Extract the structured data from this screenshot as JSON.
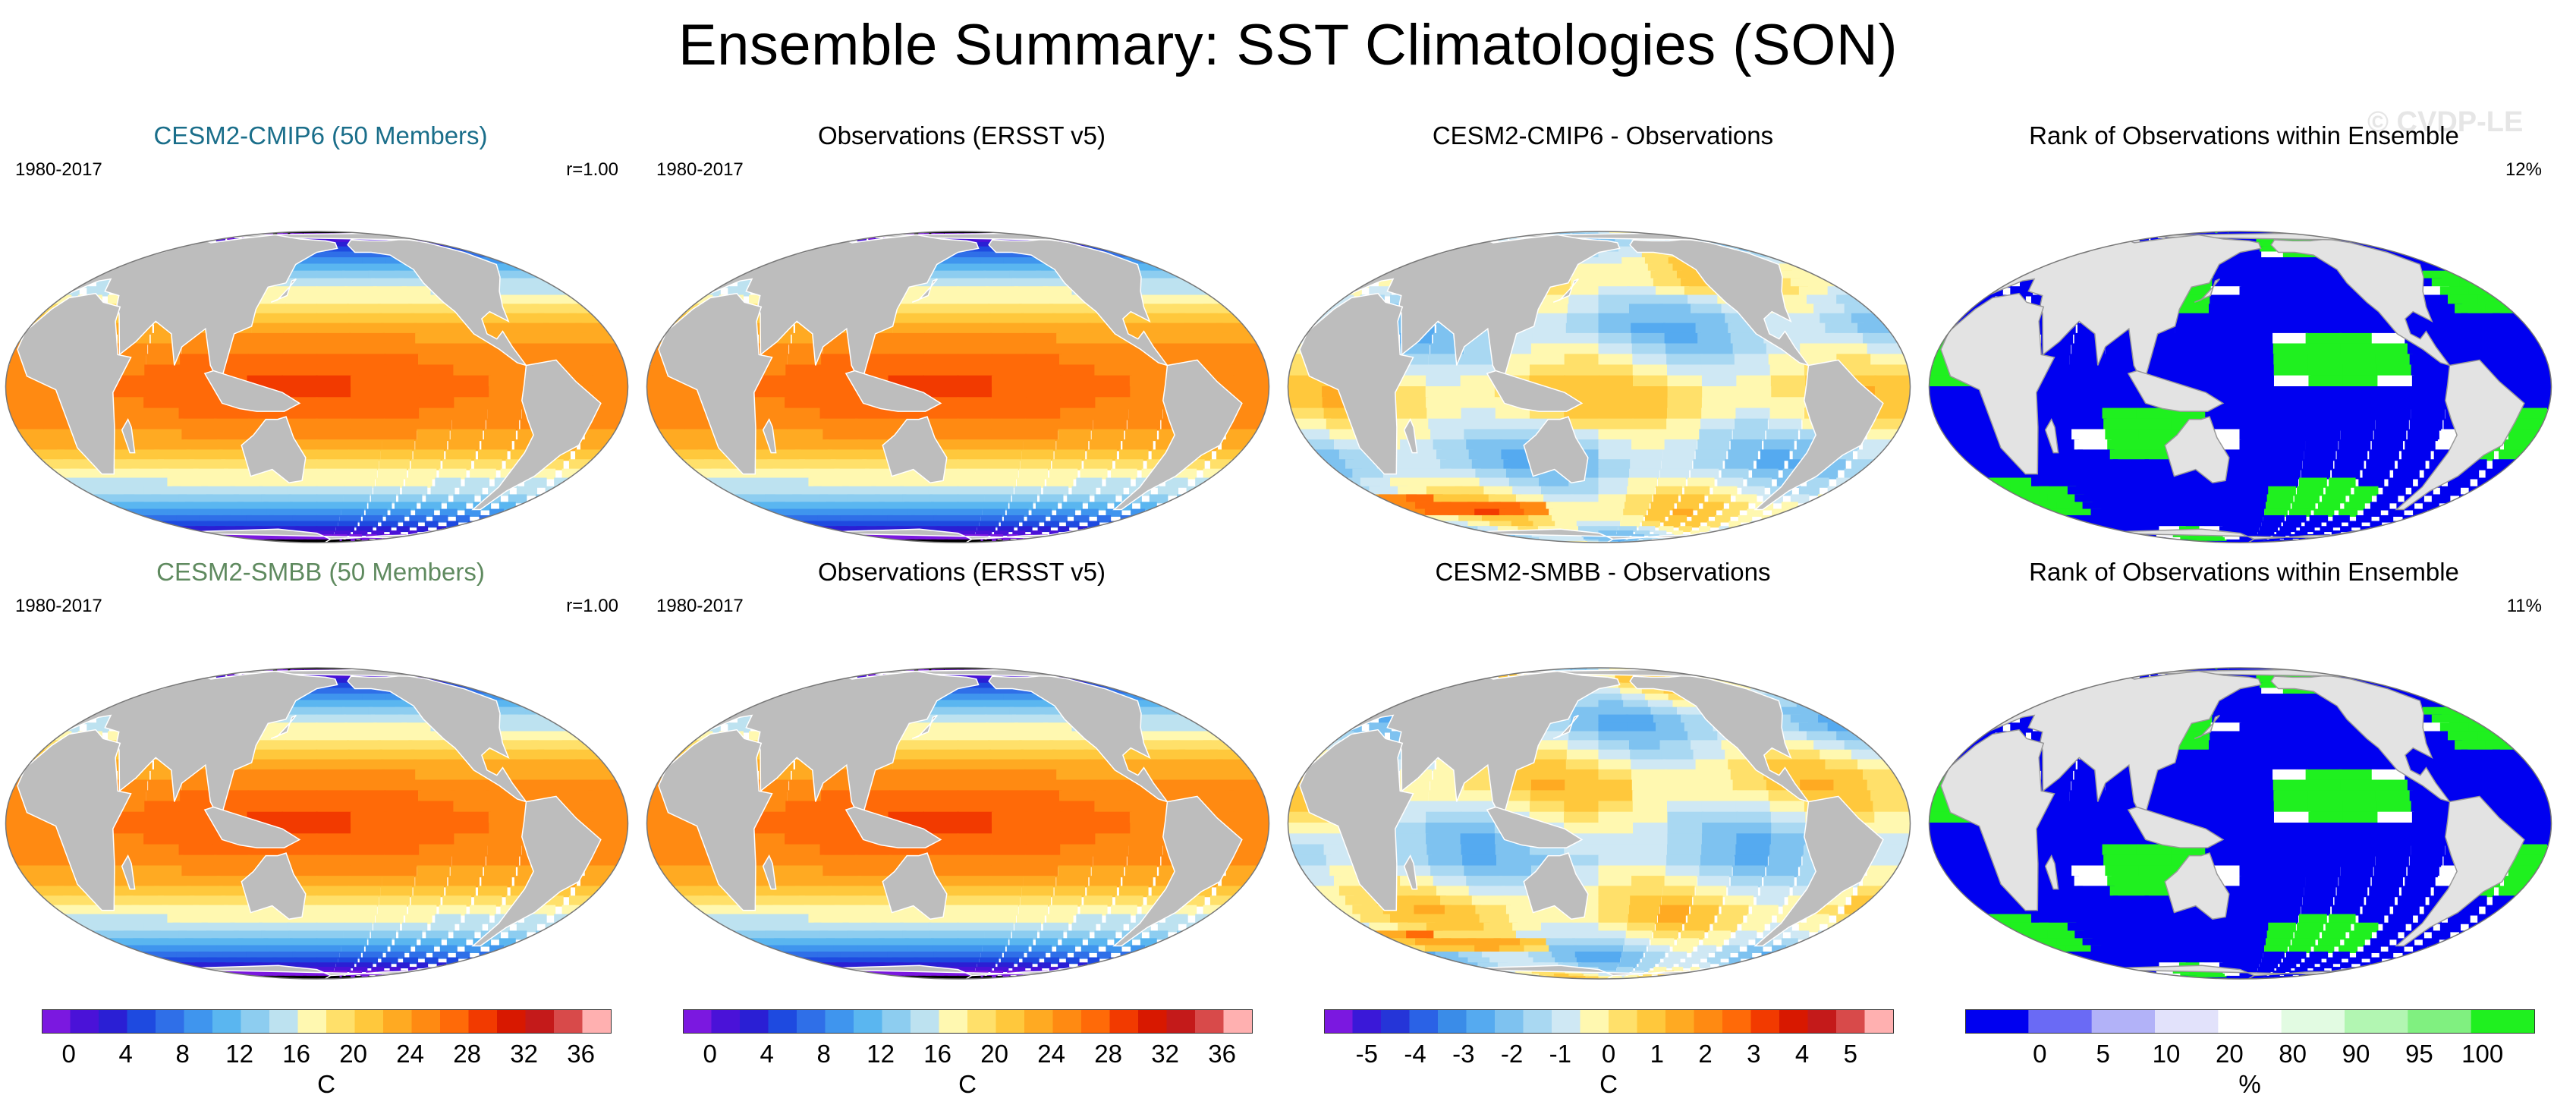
{
  "title": "Ensemble Summary: SST Climatologies (SON)",
  "watermark": "© CVDP-LE",
  "colors": {
    "model_cmip6_title": "#1a6e8a",
    "model_smbb_title": "#5f8a5f",
    "land": "#bdbdbd",
    "rank_land": "#e3e3e3"
  },
  "panels": [
    {
      "id": "cmip6-mean",
      "title": "CESM2-CMIP6 (50 Members)",
      "left": "1980-2017",
      "right": "r=1.00",
      "field": "sst",
      "title_color": "model_cmip6_title"
    },
    {
      "id": "obs-1",
      "title": "Observations (ERSST v5)",
      "left": "1980-2017",
      "right": "",
      "field": "sst"
    },
    {
      "id": "cmip6-diff",
      "title": "CESM2-CMIP6 - Observations",
      "left": "",
      "right": "",
      "field": "diff"
    },
    {
      "id": "cmip6-rank",
      "title": "Rank of Observations within Ensemble",
      "left": "",
      "right": "12%",
      "field": "rank"
    },
    {
      "id": "smbb-mean",
      "title": "CESM2-SMBB (50 Members)",
      "left": "1980-2017",
      "right": "r=1.00",
      "field": "sst",
      "title_color": "model_smbb_title"
    },
    {
      "id": "obs-2",
      "title": "Observations (ERSST v5)",
      "left": "1980-2017",
      "right": "",
      "field": "sst"
    },
    {
      "id": "smbb-diff",
      "title": "CESM2-SMBB - Observations",
      "left": "",
      "right": "",
      "field": "diff"
    },
    {
      "id": "smbb-rank",
      "title": "Rank of Observations within Ensemble",
      "left": "",
      "right": "11%",
      "field": "rank"
    }
  ],
  "colorbars": [
    {
      "id": "sst",
      "unit": "C",
      "ticks": [
        "0",
        "4",
        "8",
        "12",
        "16",
        "20",
        "24",
        "28",
        "32",
        "36"
      ],
      "colors": [
        "#7b18e0",
        "#4a12d8",
        "#2a1fd4",
        "#1e4ae0",
        "#2f6fe8",
        "#3f95ee",
        "#5ab6f0",
        "#8dcdf0",
        "#bde2f0",
        "#fff8b0",
        "#ffe06a",
        "#ffc83c",
        "#ffaa22",
        "#ff8a12",
        "#ff6a08",
        "#f23a00",
        "#d81800",
        "#c41a1a",
        "#d84a4a",
        "#ffb0b0"
      ]
    },
    {
      "id": "sst2",
      "unit": "C",
      "ticks": [
        "0",
        "4",
        "8",
        "12",
        "16",
        "20",
        "24",
        "28",
        "32",
        "36"
      ],
      "colors": [
        "#7b18e0",
        "#4a12d8",
        "#2a1fd4",
        "#1e4ae0",
        "#2f6fe8",
        "#3f95ee",
        "#5ab6f0",
        "#8dcdf0",
        "#bde2f0",
        "#fff8b0",
        "#ffe06a",
        "#ffc83c",
        "#ffaa22",
        "#ff8a12",
        "#ff6a08",
        "#f23a00",
        "#d81800",
        "#c41a1a",
        "#d84a4a",
        "#ffb0b0"
      ]
    },
    {
      "id": "diff",
      "unit": "C",
      "ticks": [
        "-5",
        "-4",
        "-3",
        "-2",
        "-1",
        "0",
        "1",
        "2",
        "3",
        "4",
        "5"
      ],
      "colors": [
        "#7b18e0",
        "#3a18d8",
        "#2535d8",
        "#2a62e6",
        "#3a8ce8",
        "#55aaf0",
        "#7ec2f0",
        "#a9d8f2",
        "#cfe8f4",
        "#fff8b0",
        "#ffe06a",
        "#ffc83c",
        "#ffaa22",
        "#ff8a12",
        "#ff6a08",
        "#f23a00",
        "#d81800",
        "#c41a1a",
        "#d84a4a",
        "#ffb0b0"
      ]
    },
    {
      "id": "rank",
      "unit": "%",
      "ticks": [
        "0",
        "5",
        "10",
        "20",
        "80",
        "90",
        "95",
        "100"
      ],
      "colors": [
        "#0000f0",
        "#6a6af5",
        "#b2b2f8",
        "#e2e2fb",
        "#ffffff",
        "#e2fbe2",
        "#b2f6b2",
        "#80f080",
        "#1ff01f"
      ]
    }
  ]
}
